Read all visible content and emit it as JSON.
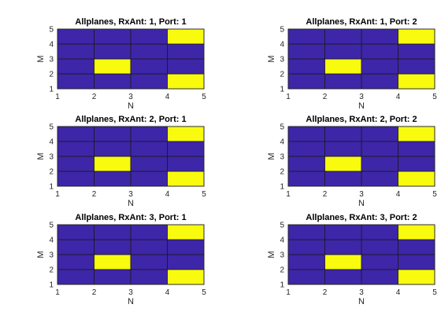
{
  "colors": {
    "low": "#3e26a8",
    "high": "#f9fb0e",
    "grid": "#1a1a1a",
    "axis": "#262626",
    "background": "#ffffff"
  },
  "chart_data": [
    {
      "type": "heatmap",
      "title": "Allplanes, RxAnt: 1, Port: 1",
      "xlabel": "N",
      "ylabel": "M",
      "xlim": [
        1,
        5
      ],
      "ylim": [
        1,
        5
      ],
      "x_ticks": [
        "1",
        "2",
        "3",
        "4",
        "5"
      ],
      "y_ticks": [
        "1",
        "2",
        "3",
        "4",
        "5"
      ],
      "grid": true,
      "values": [
        [
          0,
          0,
          0,
          1
        ],
        [
          0,
          1,
          0,
          0
        ],
        [
          0,
          0,
          0,
          0
        ],
        [
          0,
          0,
          0,
          1
        ]
      ]
    },
    {
      "type": "heatmap",
      "title": "Allplanes, RxAnt: 1, Port: 2",
      "xlabel": "N",
      "ylabel": "M",
      "xlim": [
        1,
        5
      ],
      "ylim": [
        1,
        5
      ],
      "x_ticks": [
        "1",
        "2",
        "3",
        "4",
        "5"
      ],
      "y_ticks": [
        "1",
        "2",
        "3",
        "4",
        "5"
      ],
      "grid": true,
      "values": [
        [
          0,
          0,
          0,
          1
        ],
        [
          0,
          1,
          0,
          0
        ],
        [
          0,
          0,
          0,
          0
        ],
        [
          0,
          0,
          0,
          1
        ]
      ]
    },
    {
      "type": "heatmap",
      "title": "Allplanes, RxAnt: 2, Port: 1",
      "xlabel": "N",
      "ylabel": "M",
      "xlim": [
        1,
        5
      ],
      "ylim": [
        1,
        5
      ],
      "x_ticks": [
        "1",
        "2",
        "3",
        "4",
        "5"
      ],
      "y_ticks": [
        "1",
        "2",
        "3",
        "4",
        "5"
      ],
      "grid": true,
      "values": [
        [
          0,
          0,
          0,
          1
        ],
        [
          0,
          1,
          0,
          0
        ],
        [
          0,
          0,
          0,
          0
        ],
        [
          0,
          0,
          0,
          1
        ]
      ]
    },
    {
      "type": "heatmap",
      "title": "Allplanes, RxAnt: 2, Port: 2",
      "xlabel": "N",
      "ylabel": "M",
      "xlim": [
        1,
        5
      ],
      "ylim": [
        1,
        5
      ],
      "x_ticks": [
        "1",
        "2",
        "3",
        "4",
        "5"
      ],
      "y_ticks": [
        "1",
        "2",
        "3",
        "4",
        "5"
      ],
      "grid": true,
      "values": [
        [
          0,
          0,
          0,
          1
        ],
        [
          0,
          1,
          0,
          0
        ],
        [
          0,
          0,
          0,
          0
        ],
        [
          0,
          0,
          0,
          1
        ]
      ]
    },
    {
      "type": "heatmap",
      "title": "Allplanes, RxAnt: 3, Port: 1",
      "xlabel": "N",
      "ylabel": "M",
      "xlim": [
        1,
        5
      ],
      "ylim": [
        1,
        5
      ],
      "x_ticks": [
        "1",
        "2",
        "3",
        "4",
        "5"
      ],
      "y_ticks": [
        "1",
        "2",
        "3",
        "4",
        "5"
      ],
      "grid": true,
      "values": [
        [
          0,
          0,
          0,
          1
        ],
        [
          0,
          1,
          0,
          0
        ],
        [
          0,
          0,
          0,
          0
        ],
        [
          0,
          0,
          0,
          1
        ]
      ]
    },
    {
      "type": "heatmap",
      "title": "Allplanes, RxAnt: 3, Port: 2",
      "xlabel": "N",
      "ylabel": "M",
      "xlim": [
        1,
        5
      ],
      "ylim": [
        1,
        5
      ],
      "x_ticks": [
        "1",
        "2",
        "3",
        "4",
        "5"
      ],
      "y_ticks": [
        "1",
        "2",
        "3",
        "4",
        "5"
      ],
      "grid": true,
      "values": [
        [
          0,
          0,
          0,
          1
        ],
        [
          0,
          1,
          0,
          0
        ],
        [
          0,
          0,
          0,
          0
        ],
        [
          0,
          0,
          0,
          1
        ]
      ]
    }
  ]
}
